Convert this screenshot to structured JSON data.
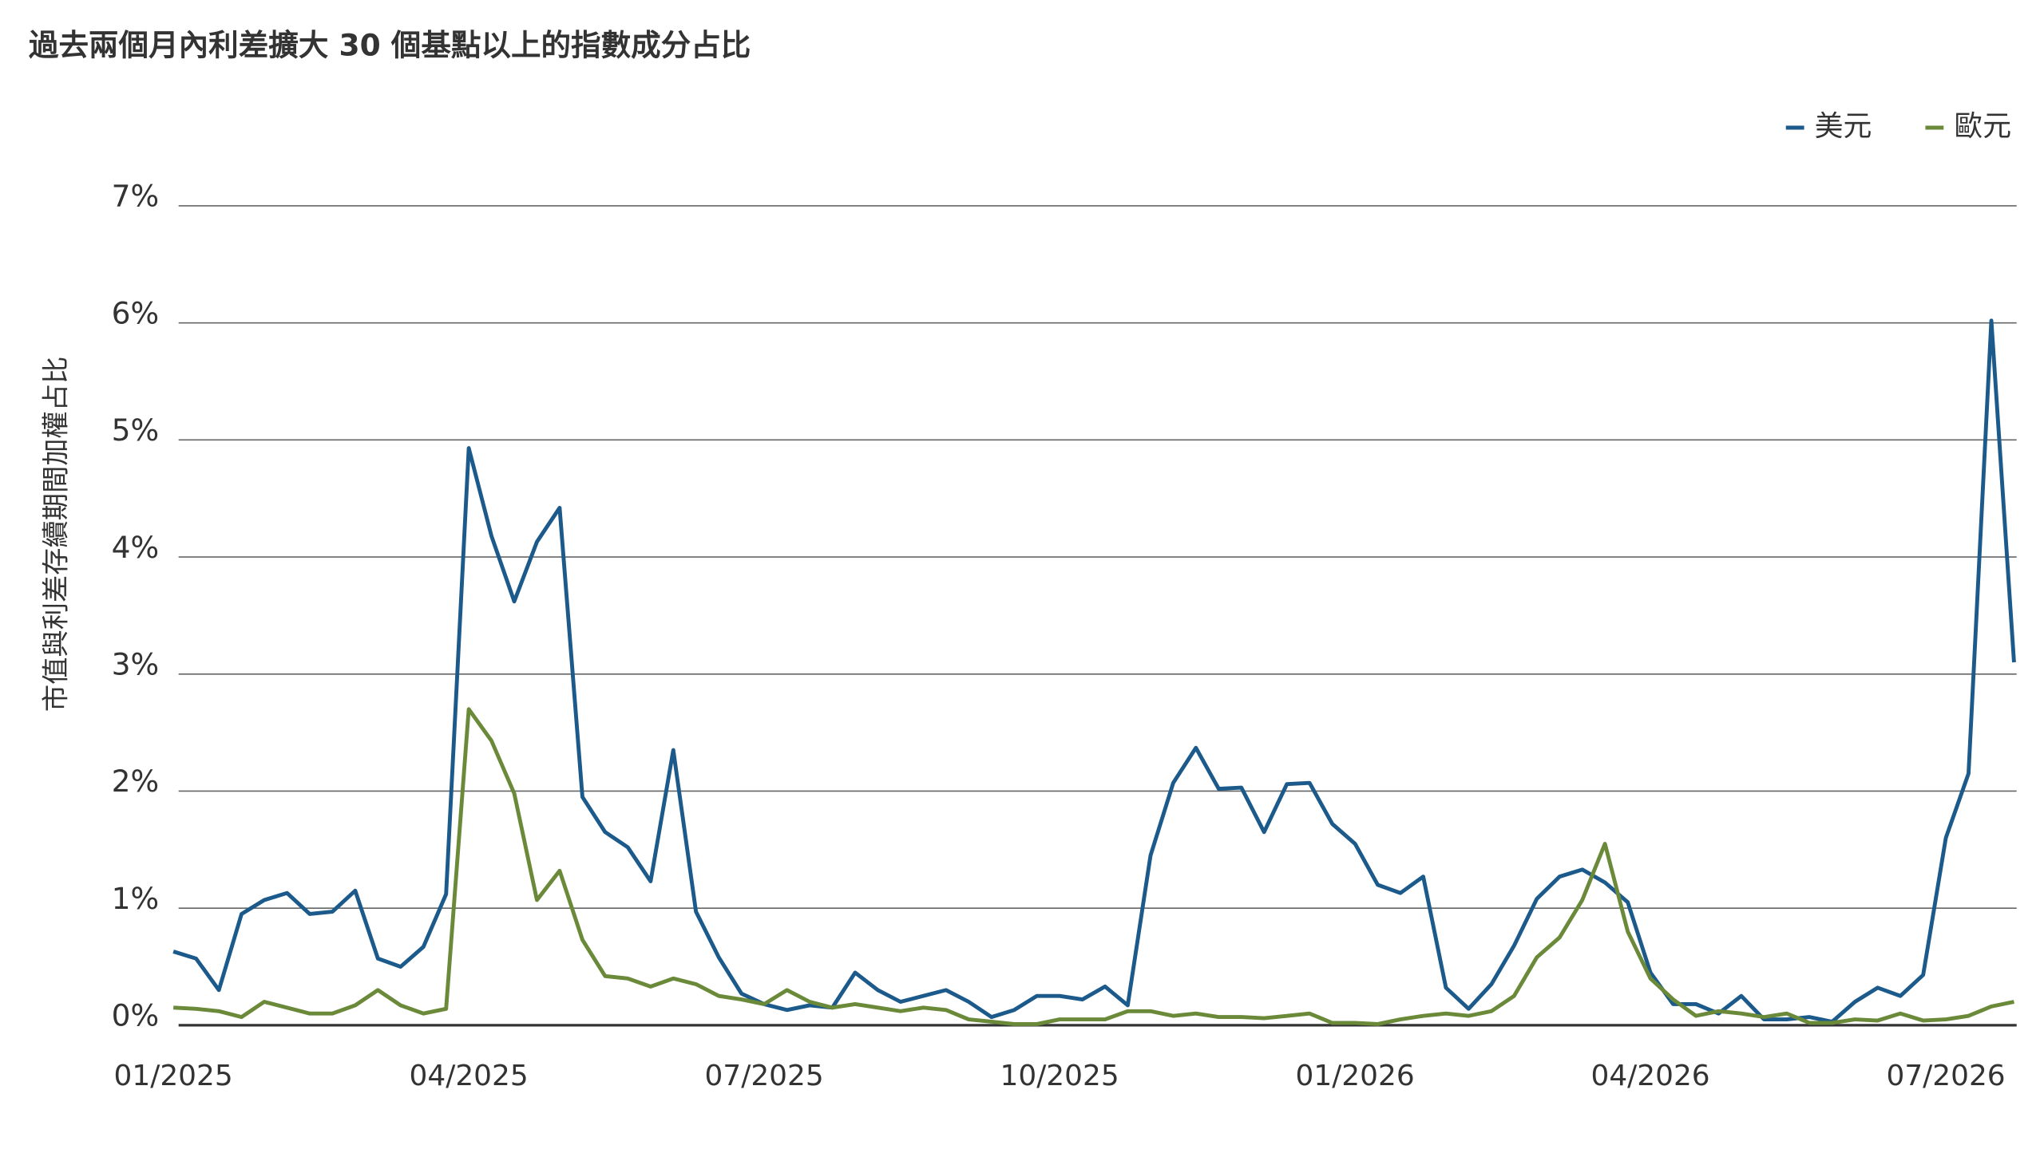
{
  "chart_data": {
    "type": "line",
    "title": "過去兩個月內利差擴大 30 個基點以上的指數成分占比",
    "y_label": "市值與利差存續期間加權占比",
    "categories": [
      "01/2025",
      null,
      null,
      null,
      null,
      null,
      null,
      null,
      null,
      null,
      null,
      null,
      null,
      "04/2025",
      null,
      null,
      null,
      null,
      null,
      null,
      null,
      null,
      null,
      null,
      null,
      null,
      "07/2025",
      null,
      null,
      null,
      null,
      null,
      null,
      null,
      null,
      null,
      null,
      null,
      null,
      "10/2025",
      null,
      null,
      null,
      null,
      null,
      null,
      null,
      null,
      null,
      null,
      null,
      null,
      "01/2026",
      null,
      null,
      null,
      null,
      null,
      null,
      null,
      null,
      null,
      null,
      null,
      null,
      "04/2026",
      null,
      null,
      null,
      null,
      null,
      null,
      null,
      null,
      null,
      null,
      null,
      null,
      "07/2026",
      null,
      null,
      null
    ],
    "series": [
      {
        "name": "美元",
        "color": "#1b5a8a",
        "values": [
          0.63,
          0.57,
          0.3,
          0.95,
          1.07,
          1.13,
          0.95,
          0.97,
          1.15,
          0.57,
          0.5,
          0.67,
          1.12,
          4.93,
          4.18,
          3.62,
          4.13,
          4.42,
          1.95,
          1.65,
          1.52,
          1.23,
          2.35,
          0.97,
          0.58,
          0.27,
          0.18,
          0.13,
          0.17,
          0.15,
          0.45,
          0.3,
          0.2,
          0.25,
          0.3,
          0.2,
          0.07,
          0.13,
          0.25,
          0.25,
          0.22,
          0.33,
          0.17,
          1.45,
          2.07,
          2.37,
          2.02,
          2.03,
          1.65,
          2.06,
          2.07,
          1.72,
          1.55,
          1.2,
          1.13,
          1.27,
          0.32,
          0.14,
          0.35,
          0.68,
          1.08,
          1.27,
          1.33,
          1.22,
          1.05,
          0.45,
          0.18,
          0.18,
          0.1,
          0.25,
          0.05,
          0.05,
          0.07,
          0.03,
          0.2,
          0.32,
          0.25,
          0.43,
          1.6,
          2.15,
          6.02,
          3.1
        ]
      },
      {
        "name": "歐元",
        "color": "#6a8a3a",
        "values": [
          0.15,
          0.14,
          0.12,
          0.07,
          0.2,
          0.15,
          0.1,
          0.1,
          0.17,
          0.3,
          0.17,
          0.1,
          0.14,
          2.7,
          2.43,
          1.98,
          1.07,
          1.32,
          0.73,
          0.42,
          0.4,
          0.33,
          0.4,
          0.35,
          0.25,
          0.22,
          0.18,
          0.3,
          0.2,
          0.15,
          0.18,
          0.15,
          0.12,
          0.15,
          0.13,
          0.05,
          0.03,
          0.01,
          0.01,
          0.05,
          0.05,
          0.05,
          0.12,
          0.12,
          0.08,
          0.1,
          0.07,
          0.07,
          0.06,
          0.08,
          0.1,
          0.02,
          0.02,
          0.01,
          0.05,
          0.08,
          0.1,
          0.08,
          0.12,
          0.25,
          0.58,
          0.75,
          1.07,
          1.55,
          0.8,
          0.4,
          0.22,
          0.08,
          0.12,
          0.1,
          0.07,
          0.1,
          0.02,
          0.02,
          0.05,
          0.04,
          0.1,
          0.04,
          0.05,
          0.08,
          0.16,
          0.2
        ]
      }
    ],
    "ylim": [
      0,
      7
    ],
    "yticks": [
      {
        "value": 0,
        "label": "0%"
      },
      {
        "value": 1,
        "label": "1%"
      },
      {
        "value": 2,
        "label": "2%"
      },
      {
        "value": 3,
        "label": "3%"
      },
      {
        "value": 4,
        "label": "4%"
      },
      {
        "value": 5,
        "label": "5%"
      },
      {
        "value": 6,
        "label": "6%"
      },
      {
        "value": 7,
        "label": "7%"
      }
    ],
    "grid": true,
    "legend": "top-right"
  }
}
